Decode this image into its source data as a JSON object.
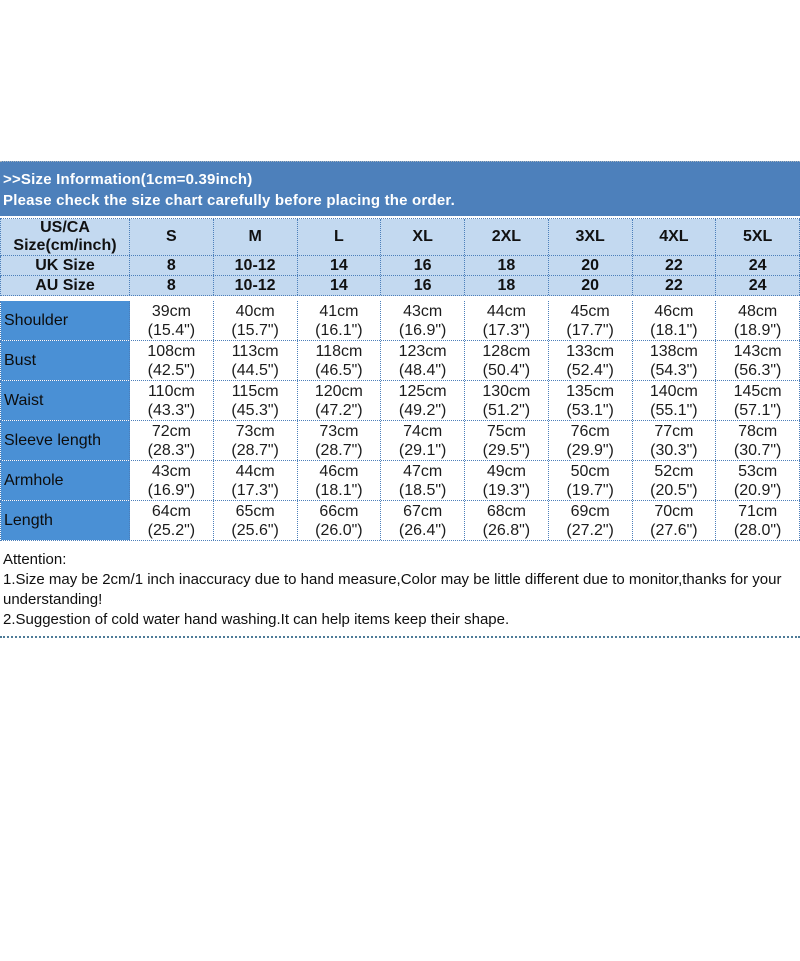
{
  "banner": {
    "title": ">>Size Information(1cm=0.39inch)",
    "subtitle": "Please check the size chart carefully before placing the order."
  },
  "size_chart": {
    "corner": {
      "line1": "US/CA",
      "line2": "Size(cm/inch)"
    },
    "sizes": [
      "S",
      "M",
      "L",
      "XL",
      "2XL",
      "3XL",
      "4XL",
      "5XL"
    ],
    "uk": {
      "label": "UK Size",
      "values": [
        "8",
        "10-12",
        "14",
        "16",
        "18",
        "20",
        "22",
        "24"
      ]
    },
    "au": {
      "label": "AU Size",
      "values": [
        "8",
        "10-12",
        "14",
        "16",
        "18",
        "20",
        "22",
        "24"
      ]
    },
    "measurements": [
      {
        "label": "Shoulder",
        "cells": [
          [
            "39cm",
            "(15.4\")"
          ],
          [
            "40cm",
            "(15.7\")"
          ],
          [
            "41cm",
            "(16.1\")"
          ],
          [
            "43cm",
            "(16.9\")"
          ],
          [
            "44cm",
            "(17.3\")"
          ],
          [
            "45cm",
            "(17.7\")"
          ],
          [
            "46cm",
            "(18.1\")"
          ],
          [
            "48cm",
            "(18.9\")"
          ]
        ]
      },
      {
        "label": "Bust",
        "cells": [
          [
            "108cm",
            "(42.5\")"
          ],
          [
            "113cm",
            "(44.5\")"
          ],
          [
            "118cm",
            "(46.5\")"
          ],
          [
            "123cm",
            "(48.4\")"
          ],
          [
            "128cm",
            "(50.4\")"
          ],
          [
            "133cm",
            "(52.4\")"
          ],
          [
            "138cm",
            "(54.3\")"
          ],
          [
            "143cm",
            "(56.3\")"
          ]
        ]
      },
      {
        "label": "Waist",
        "cells": [
          [
            "110cm",
            "(43.3\")"
          ],
          [
            "115cm",
            "(45.3\")"
          ],
          [
            "120cm",
            "(47.2\")"
          ],
          [
            "125cm",
            "(49.2\")"
          ],
          [
            "130cm",
            "(51.2\")"
          ],
          [
            "135cm",
            "(53.1\")"
          ],
          [
            "140cm",
            "(55.1\")"
          ],
          [
            "145cm",
            "(57.1\")"
          ]
        ]
      },
      {
        "label": "Sleeve length",
        "cells": [
          [
            "72cm",
            "(28.3\")"
          ],
          [
            "73cm",
            "(28.7\")"
          ],
          [
            "73cm",
            "(28.7\")"
          ],
          [
            "74cm",
            "(29.1\")"
          ],
          [
            "75cm",
            "(29.5\")"
          ],
          [
            "76cm",
            "(29.9\")"
          ],
          [
            "77cm",
            "(30.3\")"
          ],
          [
            "78cm",
            "(30.7\")"
          ]
        ]
      },
      {
        "label": "Armhole",
        "cells": [
          [
            "43cm",
            "(16.9\")"
          ],
          [
            "44cm",
            "(17.3\")"
          ],
          [
            "46cm",
            "(18.1\")"
          ],
          [
            "47cm",
            "(18.5\")"
          ],
          [
            "49cm",
            "(19.3\")"
          ],
          [
            "50cm",
            "(19.7\")"
          ],
          [
            "52cm",
            "(20.5\")"
          ],
          [
            "53cm",
            "(20.9\")"
          ]
        ]
      },
      {
        "label": "Length",
        "cells": [
          [
            "64cm",
            "(25.2\")"
          ],
          [
            "65cm",
            "(25.6\")"
          ],
          [
            "66cm",
            "(26.0\")"
          ],
          [
            "67cm",
            "(26.4\")"
          ],
          [
            "68cm",
            "(26.8\")"
          ],
          [
            "69cm",
            "(27.2\")"
          ],
          [
            "70cm",
            "(27.6\")"
          ],
          [
            "71cm",
            "(28.0\")"
          ]
        ]
      }
    ]
  },
  "attention": {
    "lines": [
      "Attention:",
      "1.Size may be 2cm/1 inch inaccuracy due to hand measure,Color may be little different due to monitor,thanks for your",
      "understanding!",
      "2.Suggestion of cold water hand washing.It can help items keep their shape."
    ]
  },
  "colors": {
    "banner_bg": "#4d80bb",
    "header_row_bg": "#c3d9f0",
    "row_label_bg": "#4a90d5",
    "grid_dotted": "#4c7fba",
    "bottom_rule_dotted": "#4e7b97",
    "banner_text": "#ffffff",
    "table_text": "#111111"
  }
}
